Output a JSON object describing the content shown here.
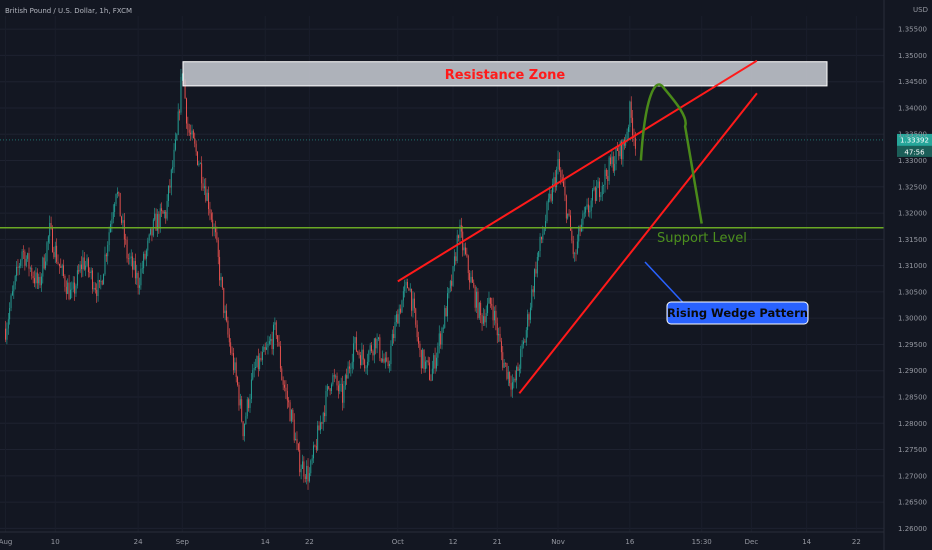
{
  "window": {
    "title": "British Pound / U.S. Dollar, 1h, FXCM",
    "currency": "USD"
  },
  "colors": {
    "background": "#131722",
    "up_candle": "#26a69a",
    "down_candle": "#ef5350",
    "resistance_fill": "#d1d4dc",
    "resistance_text": "#ff1a1a",
    "wedge_lines": "#ff1a1a",
    "support_line": "#6aa824",
    "arrow_green": "#4a8a1a",
    "callout_fill": "#2962ff",
    "price_badge": "#26a69a"
  },
  "chart_data": {
    "type": "candlestick",
    "symbol": "GBP/USD",
    "timeframe": "1h",
    "source": "FXCM",
    "x_tick_labels": [
      "Aug",
      "10",
      "24",
      "Sep",
      "14",
      "22",
      "Oct",
      "12",
      "21",
      "Nov",
      "16",
      "15:30",
      "Dec",
      "14",
      "22"
    ],
    "y_tick_labels": [
      "1.35500",
      "1.35000",
      "1.34500",
      "1.34000",
      "1.33500",
      "1.33000",
      "1.32500",
      "1.32000",
      "1.31500",
      "1.31000",
      "1.30500",
      "1.30000",
      "1.29500",
      "1.29000",
      "1.28500",
      "1.28000",
      "1.27500",
      "1.27000",
      "1.26500",
      "1.26000"
    ],
    "ylim": [
      1.2595,
      1.3575
    ],
    "current_price": "1.33392",
    "countdown": "47:56",
    "price_path": [
      {
        "d": 0,
        "p": 1.298
      },
      {
        "d": 3,
        "p": 1.313
      },
      {
        "d": 6,
        "p": 1.306
      },
      {
        "d": 8,
        "p": 1.3165
      },
      {
        "d": 10,
        "p": 1.309
      },
      {
        "d": 12,
        "p": 1.304
      },
      {
        "d": 14,
        "p": 1.311
      },
      {
        "d": 17,
        "p": 1.305
      },
      {
        "d": 20,
        "p": 1.325
      },
      {
        "d": 22,
        "p": 1.312
      },
      {
        "d": 24,
        "p": 1.307
      },
      {
        "d": 27,
        "p": 1.318
      },
      {
        "d": 29,
        "p": 1.32
      },
      {
        "d": 31,
        "p": 1.334
      },
      {
        "d": 32,
        "p": 1.3478
      },
      {
        "d": 33,
        "p": 1.336
      },
      {
        "d": 35,
        "p": 1.33
      },
      {
        "d": 37,
        "p": 1.321
      },
      {
        "d": 38,
        "p": 1.315
      },
      {
        "d": 40,
        "p": 1.298
      },
      {
        "d": 42,
        "p": 1.287
      },
      {
        "d": 43,
        "p": 1.279
      },
      {
        "d": 45,
        "p": 1.29
      },
      {
        "d": 47,
        "p": 1.293
      },
      {
        "d": 49,
        "p": 1.298
      },
      {
        "d": 50,
        "p": 1.289
      },
      {
        "d": 52,
        "p": 1.28
      },
      {
        "d": 53,
        "p": 1.273
      },
      {
        "d": 55,
        "p": 1.27
      },
      {
        "d": 57,
        "p": 1.28
      },
      {
        "d": 59,
        "p": 1.289
      },
      {
        "d": 61,
        "p": 1.285
      },
      {
        "d": 63,
        "p": 1.295
      },
      {
        "d": 65,
        "p": 1.292
      },
      {
        "d": 67,
        "p": 1.296
      },
      {
        "d": 69,
        "p": 1.29
      },
      {
        "d": 71,
        "p": 1.301
      },
      {
        "d": 73,
        "p": 1.307
      },
      {
        "d": 75,
        "p": 1.293
      },
      {
        "d": 77,
        "p": 1.289
      },
      {
        "d": 79,
        "p": 1.298
      },
      {
        "d": 81,
        "p": 1.308
      },
      {
        "d": 82,
        "p": 1.317
      },
      {
        "d": 84,
        "p": 1.308
      },
      {
        "d": 86,
        "p": 1.3
      },
      {
        "d": 88,
        "p": 1.303
      },
      {
        "d": 90,
        "p": 1.292
      },
      {
        "d": 92,
        "p": 1.287
      },
      {
        "d": 94,
        "p": 1.296
      },
      {
        "d": 96,
        "p": 1.31
      },
      {
        "d": 98,
        "p": 1.32
      },
      {
        "d": 100,
        "p": 1.329
      },
      {
        "d": 101,
        "p": 1.324
      },
      {
        "d": 102,
        "p": 1.318
      },
      {
        "d": 103,
        "p": 1.311
      },
      {
        "d": 104,
        "p": 1.317
      },
      {
        "d": 106,
        "p": 1.322
      },
      {
        "d": 108,
        "p": 1.326
      },
      {
        "d": 110,
        "p": 1.33
      },
      {
        "d": 112,
        "p": 1.333
      },
      {
        "d": 113,
        "p": 1.3392
      },
      {
        "d": 114,
        "p": 1.3339
      }
    ],
    "date_range": [
      -1,
      159
    ]
  },
  "annotations": {
    "resistance_label": "Resistance Zone",
    "resistance_zone": [
      1.3442,
      1.3488
    ],
    "support_label": "Support Level",
    "support_price": 1.3172,
    "wedge_label": "Rising Wedge Pattern",
    "wedge_upper": [
      {
        "d": 71,
        "p": 1.307
      },
      {
        "d": 136,
        "p": 1.349
      }
    ],
    "wedge_lower": [
      {
        "d": 93,
        "p": 1.2857
      },
      {
        "d": 136,
        "p": 1.3428
      }
    ],
    "projection": [
      {
        "d": 115,
        "p": 1.33
      },
      {
        "d": 119,
        "p": 1.344
      },
      {
        "d": 123,
        "p": 1.3365
      },
      {
        "d": 126,
        "p": 1.318
      }
    ]
  }
}
